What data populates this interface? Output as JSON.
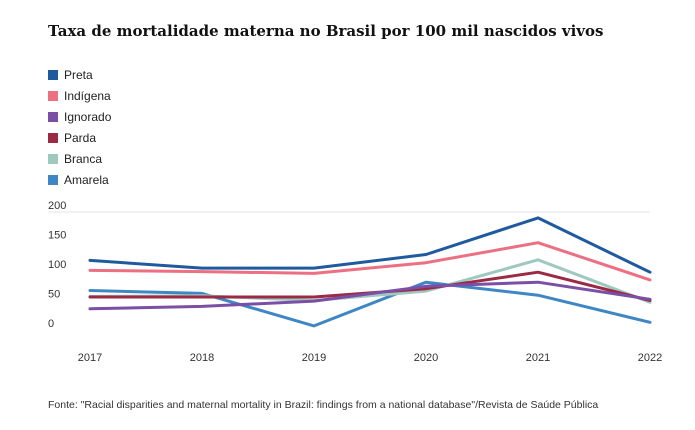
{
  "chart_data": {
    "type": "line",
    "title": "Taxa de mortalidade materna no Brasil por 100 mil nascidos vivos",
    "x": [
      "2017",
      "2018",
      "2019",
      "2020",
      "2021",
      "2022"
    ],
    "y_ticks": [
      "200",
      "150",
      "100",
      "50",
      "0"
    ],
    "ylim": [
      0,
      200
    ],
    "legend_position": "top-left",
    "grid": false,
    "series": [
      {
        "name": "Preta",
        "color": "#1f5a9e",
        "values": [
          118,
          105,
          105,
          128,
          190,
          98
        ]
      },
      {
        "name": "Indígena",
        "color": "#ec6f82",
        "values": [
          101,
          99,
          96,
          114,
          148,
          85
        ]
      },
      {
        "name": "Ignorado",
        "color": "#7b4fa6",
        "values": [
          36,
          40,
          49,
          74,
          81,
          52
        ]
      },
      {
        "name": "Parda",
        "color": "#9b2a45",
        "values": [
          56,
          56,
          56,
          70,
          98,
          50
        ]
      },
      {
        "name": "Branca",
        "color": "#9fc9bf",
        "values": [
          57,
          58,
          50,
          66,
          119,
          47
        ]
      },
      {
        "name": "Amarela",
        "color": "#3f86c4",
        "values": [
          67,
          62,
          7,
          81,
          59,
          13
        ]
      }
    ],
    "source": "Fonte: \"Racial disparities and maternal mortality in Brazil: findings from a national database\"/Revista de Saúde Pública"
  }
}
